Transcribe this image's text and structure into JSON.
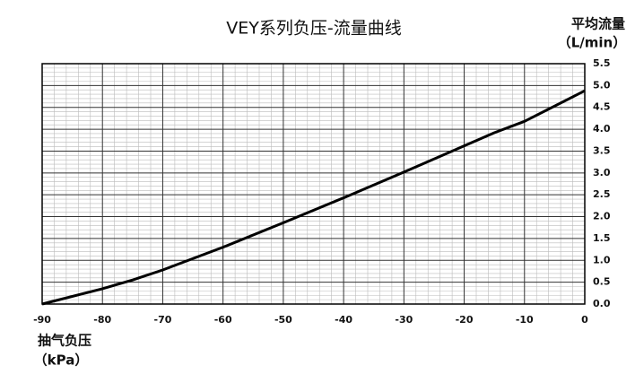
{
  "chart_data": {
    "type": "line",
    "title": "VEY系列负压-流量曲线",
    "ylabel": [
      "平均流量",
      "（L/min）"
    ],
    "xlabel": [
      "抽气负压",
      "（kPa）"
    ],
    "x": [
      -90,
      -80,
      -75,
      -70,
      -60,
      -50,
      -40,
      -30,
      -20,
      -15,
      -10,
      0
    ],
    "series": [
      {
        "color": "#000000",
        "values": [
          0,
          0.35,
          0.55,
          0.78,
          1.3,
          1.86,
          2.43,
          3.02,
          3.62,
          3.92,
          4.18,
          4.88
        ]
      }
    ],
    "xlim": [
      -90,
      0
    ],
    "xticks": [
      -90,
      -80,
      -70,
      -60,
      -50,
      -40,
      -30,
      -20,
      -10,
      0
    ],
    "ylim": [
      0,
      5.5
    ],
    "yticks": [
      {
        "value": 0,
        "label": "0.0"
      },
      0.5,
      {
        "value": 1,
        "label": "1.0"
      },
      1.5,
      {
        "value": 2,
        "label": "2.0"
      },
      2.5,
      {
        "value": 3,
        "label": "3.0"
      },
      3.5,
      {
        "value": 4,
        "label": "4.0"
      },
      4.5,
      {
        "value": 5,
        "label": "5.0"
      },
      5.5
    ],
    "grid": true
  }
}
